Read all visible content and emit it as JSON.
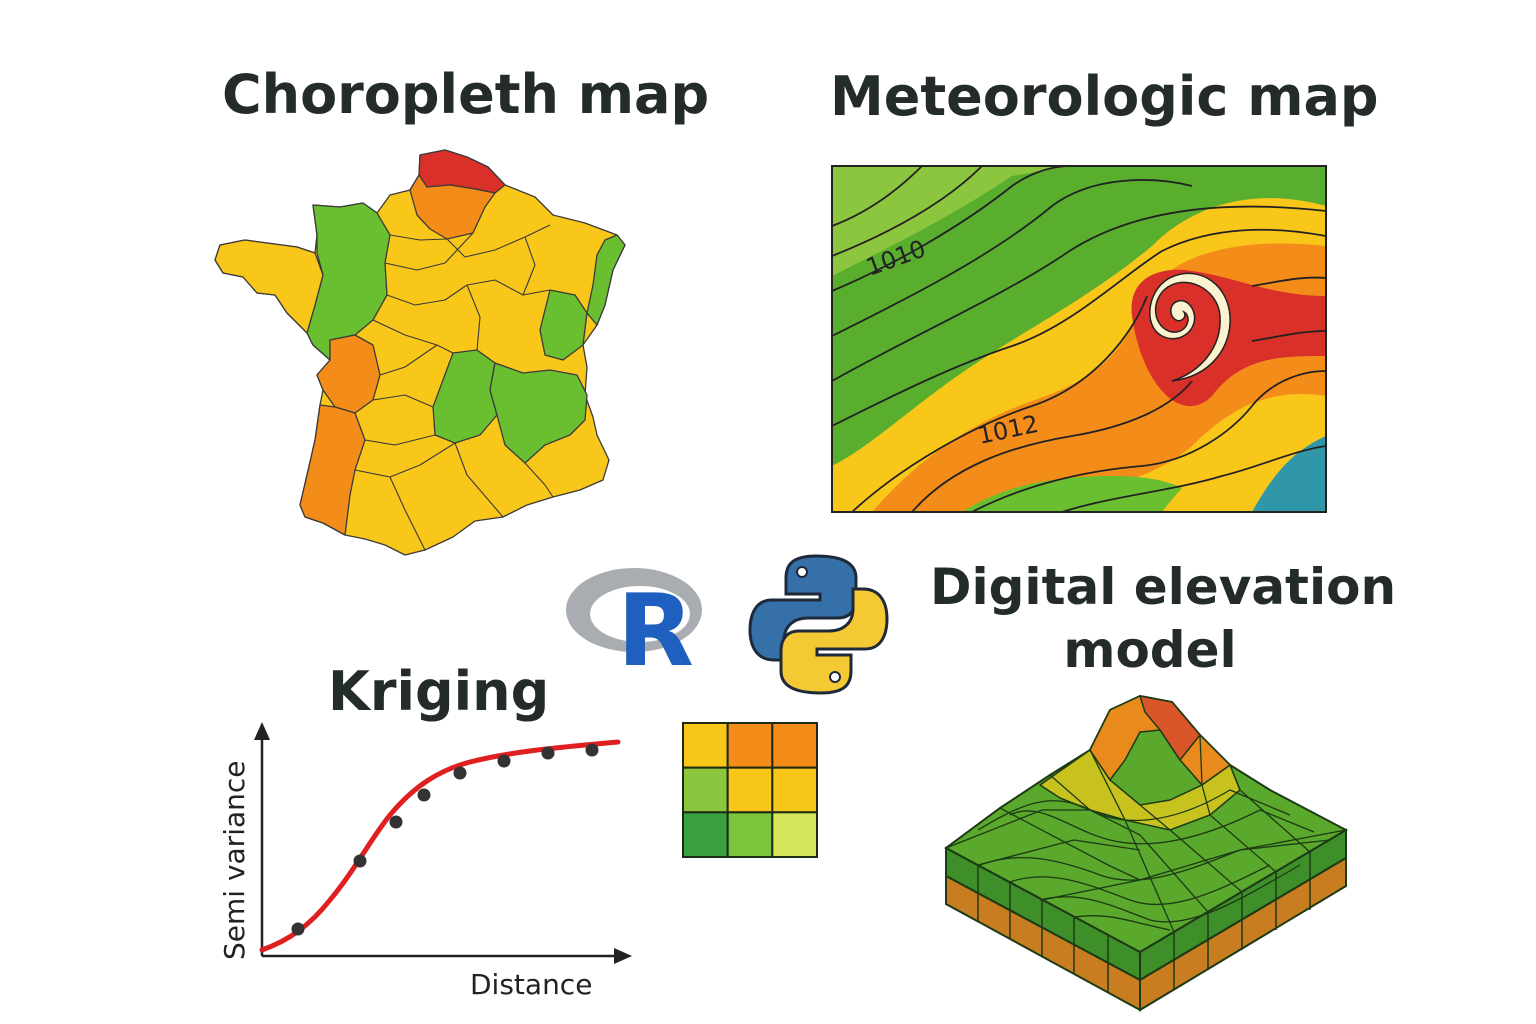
{
  "titles": {
    "choropleth": "Choropleth map",
    "meteorologic": "Meteorologic map",
    "dem_line1": "Digital elevation",
    "dem_line2": "model",
    "kriging": "Kriging"
  },
  "meteo_labels": {
    "isobar_a": "1010",
    "isobar_b": "1012"
  },
  "kriging": {
    "xlabel": "Distance",
    "ylabel": "Semi variance",
    "line_color": "#e02020",
    "point_color": "#333333"
  },
  "logos": {
    "r_letter": "R",
    "r_color": "#1f5fbf",
    "python_blue": "#3570a8",
    "python_yellow": "#f5c933"
  },
  "palette": {
    "red": "#d9302a",
    "orange": "#f48c1a",
    "yellow": "#f9c61a",
    "light_green": "#8cc63f",
    "green": "#5aae2e",
    "blue": "#2f97a8"
  },
  "raster_grid": {
    "rows": 3,
    "cols": 3,
    "cells": [
      "#f9c61a",
      "#f48c1a",
      "#f48c1a",
      "#8cc63f",
      "#f9c61a",
      "#f9c61a",
      "#3aa040",
      "#7cc43a",
      "#d6e65a"
    ]
  }
}
